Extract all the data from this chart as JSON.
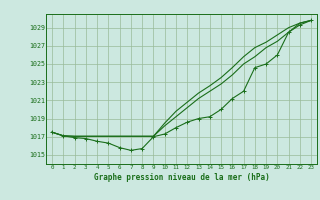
{
  "background_color": "#cce8e0",
  "grid_color": "#99bb99",
  "line_color": "#1a6e1a",
  "title": "Graphe pression niveau de la mer (hPa)",
  "xlim": [
    -0.5,
    23.5
  ],
  "ylim": [
    1014.0,
    1030.5
  ],
  "yticks": [
    1015,
    1017,
    1019,
    1021,
    1023,
    1025,
    1027,
    1029
  ],
  "xticks": [
    0,
    1,
    2,
    3,
    4,
    5,
    6,
    7,
    8,
    9,
    10,
    11,
    12,
    13,
    14,
    15,
    16,
    17,
    18,
    19,
    20,
    21,
    22,
    23
  ],
  "line1": [
    1017.5,
    1017.1,
    1016.9,
    1016.8,
    1016.5,
    1016.3,
    1015.8,
    1015.5,
    1015.7,
    1017.0,
    1017.3,
    1018.0,
    1018.6,
    1019.0,
    1019.2,
    1020.0,
    1021.2,
    1022.0,
    1024.6,
    1025.0,
    1026.0,
    1028.5,
    1029.3,
    1029.8
  ],
  "line2": [
    1017.5,
    1017.1,
    1017.05,
    1017.05,
    1017.05,
    1017.05,
    1017.05,
    1017.05,
    1017.05,
    1017.05,
    1018.5,
    1019.8,
    1020.8,
    1021.8,
    1022.6,
    1023.5,
    1024.6,
    1025.8,
    1026.8,
    1027.4,
    1028.2,
    1029.0,
    1029.5,
    1029.8
  ],
  "line3": [
    1017.5,
    1017.1,
    1017.05,
    1017.05,
    1017.05,
    1017.05,
    1017.05,
    1017.05,
    1017.05,
    1017.05,
    1018.2,
    1019.2,
    1020.2,
    1021.2,
    1022.0,
    1022.8,
    1023.8,
    1025.0,
    1025.8,
    1026.8,
    1027.5,
    1028.5,
    1029.5,
    1029.8
  ]
}
